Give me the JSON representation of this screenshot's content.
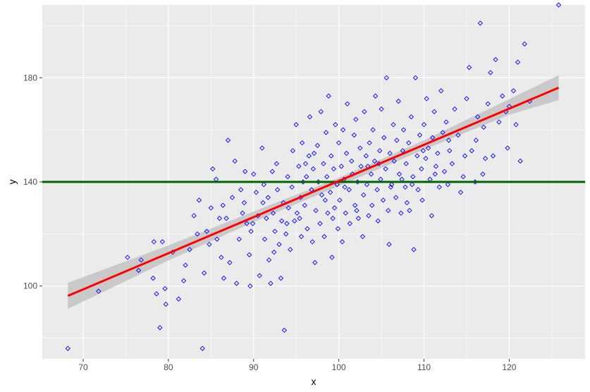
{
  "chart_data": {
    "type": "scatter",
    "xlabel": "x",
    "ylabel": "y",
    "xlim": [
      65.2,
      128.9
    ],
    "ylim": [
      72.0,
      208.0
    ],
    "x_ticks": [
      70,
      80,
      90,
      100,
      110,
      120
    ],
    "y_ticks": [
      100,
      140,
      180
    ],
    "x_tick_labels": [
      "70",
      "80",
      "90",
      "100",
      "110",
      "120"
    ],
    "y_tick_labels": [
      "100",
      "140",
      "180"
    ],
    "grid": true,
    "legend": "none",
    "colors": {
      "panel": "#ebebeb",
      "grid": "#ffffff",
      "points": "#0000ff",
      "fit_line": "#ff0000",
      "confidence_band": "#bebebe",
      "hline": "#006400"
    },
    "hline": {
      "y": 140
    },
    "regression": {
      "x": [
        68.2,
        125.8
      ],
      "y": [
        96.2,
        176.2
      ],
      "band_x": [
        68.2,
        80,
        90,
        100,
        110,
        120,
        125.8
      ],
      "band_low": [
        91.2,
        109.8,
        124.6,
        138.4,
        152.4,
        165.8,
        171.4
      ],
      "band_high": [
        101.2,
        115.6,
        128.6,
        141.6,
        156.0,
        171.8,
        181.0
      ]
    },
    "series": [
      {
        "points": [
          [
            68.2,
            76
          ],
          [
            71.8,
            98
          ],
          [
            75.2,
            111
          ],
          [
            76.5,
            106
          ],
          [
            78.3,
            117
          ],
          [
            78.2,
            103
          ],
          [
            78.6,
            97
          ],
          [
            79.0,
            84
          ],
          [
            79.3,
            117
          ],
          [
            79.6,
            99
          ],
          [
            79.7,
            93
          ],
          [
            80.5,
            113
          ],
          [
            81.2,
            95
          ],
          [
            81.8,
            102
          ],
          [
            82.5,
            114
          ],
          [
            83.0,
            127
          ],
          [
            83.4,
            120
          ],
          [
            84.0,
            76
          ],
          [
            84.2,
            105
          ],
          [
            84.5,
            121
          ],
          [
            85.0,
            130
          ],
          [
            85.2,
            145
          ],
          [
            85.6,
            141
          ],
          [
            85.7,
            118
          ],
          [
            86.0,
            126
          ],
          [
            86.2,
            111
          ],
          [
            86.5,
            103
          ],
          [
            86.8,
            126
          ],
          [
            87.0,
            156
          ],
          [
            87.2,
            109
          ],
          [
            87.5,
            134
          ],
          [
            87.8,
            148
          ],
          [
            88.0,
            101
          ],
          [
            88.3,
            118
          ],
          [
            88.5,
            137
          ],
          [
            88.7,
            128
          ],
          [
            89.0,
            144
          ],
          [
            89.2,
            124
          ],
          [
            89.5,
            112
          ],
          [
            89.6,
            100
          ],
          [
            89.7,
            121
          ],
          [
            90.0,
            143
          ],
          [
            90.3,
            136
          ],
          [
            90.5,
            127
          ],
          [
            90.7,
            104
          ],
          [
            91.0,
            153
          ],
          [
            91.2,
            139
          ],
          [
            91.3,
            118
          ],
          [
            91.5,
            126
          ],
          [
            91.7,
            134
          ],
          [
            91.8,
            110
          ],
          [
            92.0,
            101
          ],
          [
            92.2,
            144
          ],
          [
            92.3,
            128
          ],
          [
            92.5,
            121
          ],
          [
            92.7,
            147
          ],
          [
            92.8,
            137
          ],
          [
            93.0,
            116
          ],
          [
            93.2,
            103
          ],
          [
            93.3,
            125
          ],
          [
            93.5,
            132
          ],
          [
            93.6,
            83
          ],
          [
            93.8,
            120
          ],
          [
            94.0,
            142
          ],
          [
            94.1,
            130
          ],
          [
            94.3,
            114
          ],
          [
            94.5,
            138
          ],
          [
            94.6,
            152
          ],
          [
            94.8,
            125
          ],
          [
            95.0,
            162
          ],
          [
            95.1,
            128
          ],
          [
            95.3,
            146
          ],
          [
            95.5,
            134
          ],
          [
            95.6,
            119
          ],
          [
            95.7,
            155
          ],
          [
            95.8,
            140
          ],
          [
            96.0,
            131
          ],
          [
            96.2,
            142
          ],
          [
            96.3,
            122
          ],
          [
            96.5,
            150
          ],
          [
            96.6,
            165
          ],
          [
            96.8,
            137
          ],
          [
            96.9,
            117
          ],
          [
            97.0,
            145
          ],
          [
            97.2,
            109
          ],
          [
            97.3,
            129
          ],
          [
            97.5,
            154
          ],
          [
            97.6,
            140
          ],
          [
            97.8,
            124
          ],
          [
            97.9,
            167
          ],
          [
            98.0,
            135
          ],
          [
            98.2,
            147
          ],
          [
            98.3,
            119
          ],
          [
            98.5,
            159
          ],
          [
            98.6,
            142
          ],
          [
            98.7,
            128
          ],
          [
            98.8,
            173
          ],
          [
            99.0,
            136
          ],
          [
            99.1,
            150
          ],
          [
            99.2,
            111
          ],
          [
            99.4,
            145
          ],
          [
            99.5,
            130
          ],
          [
            99.6,
            162
          ],
          [
            99.8,
            139
          ],
          [
            99.9,
            122
          ],
          [
            100.0,
            155
          ],
          [
            100.1,
            133
          ],
          [
            100.3,
            146
          ],
          [
            100.4,
            117
          ],
          [
            100.5,
            160
          ],
          [
            100.6,
            141
          ],
          [
            100.8,
            128
          ],
          [
            100.9,
            151
          ],
          [
            101.0,
            170
          ],
          [
            101.2,
            137
          ],
          [
            101.3,
            124
          ],
          [
            101.5,
            148
          ],
          [
            101.6,
            143
          ],
          [
            101.8,
            158
          ],
          [
            101.9,
            131
          ],
          [
            102.0,
            164
          ],
          [
            102.2,
            140
          ],
          [
            102.3,
            126
          ],
          [
            102.5,
            153
          ],
          [
            102.6,
            146
          ],
          [
            102.8,
            119
          ],
          [
            102.9,
            135
          ],
          [
            103.0,
            167
          ],
          [
            103.2,
            150
          ],
          [
            103.3,
            139
          ],
          [
            103.5,
            127
          ],
          [
            103.6,
            155
          ],
          [
            103.8,
            143
          ],
          [
            103.9,
            131
          ],
          [
            104.0,
            160
          ],
          [
            104.2,
            148
          ],
          [
            104.3,
            173
          ],
          [
            104.5,
            137
          ],
          [
            104.6,
            125
          ],
          [
            104.8,
            152
          ],
          [
            104.9,
            141
          ],
          [
            105.0,
            168
          ],
          [
            105.2,
            133
          ],
          [
            105.3,
            157
          ],
          [
            105.5,
            145
          ],
          [
            105.6,
            180
          ],
          [
            105.8,
            129
          ],
          [
            105.9,
            116
          ],
          [
            106.0,
            151
          ],
          [
            106.2,
            139
          ],
          [
            106.4,
            162
          ],
          [
            106.5,
            148
          ],
          [
            106.7,
            134
          ],
          [
            106.8,
            156
          ],
          [
            107.0,
            171
          ],
          [
            107.1,
            143
          ],
          [
            107.3,
            128
          ],
          [
            107.5,
            152
          ],
          [
            107.6,
            160
          ],
          [
            107.8,
            138
          ],
          [
            107.9,
            147
          ],
          [
            108.0,
            132
          ],
          [
            108.2,
            155
          ],
          [
            108.3,
            129
          ],
          [
            108.5,
            165
          ],
          [
            108.7,
            142
          ],
          [
            108.8,
            114
          ],
          [
            109.0,
            180
          ],
          [
            109.2,
            150
          ],
          [
            109.3,
            137
          ],
          [
            109.5,
            158
          ],
          [
            109.7,
            145
          ],
          [
            109.8,
            133
          ],
          [
            110.0,
            162
          ],
          [
            110.2,
            149
          ],
          [
            110.3,
            172
          ],
          [
            110.5,
            153
          ],
          [
            110.7,
            141
          ],
          [
            110.9,
            127
          ],
          [
            111.0,
            157
          ],
          [
            111.2,
            167
          ],
          [
            111.4,
            146
          ],
          [
            111.6,
            151
          ],
          [
            111.8,
            138
          ],
          [
            112.0,
            175
          ],
          [
            112.2,
            159
          ],
          [
            112.4,
            144
          ],
          [
            112.6,
            163
          ],
          [
            112.8,
            139
          ],
          [
            113.0,
            152
          ],
          [
            113.3,
            147
          ],
          [
            113.6,
            168
          ],
          [
            114.0,
            158
          ],
          [
            114.3,
            136
          ],
          [
            114.6,
            142
          ],
          [
            115.0,
            172
          ],
          [
            115.3,
            184
          ],
          [
            115.6,
            152
          ],
          [
            116.0,
            140
          ],
          [
            116.3,
            165
          ],
          [
            116.6,
            201
          ],
          [
            116.9,
            143
          ],
          [
            117.2,
            149
          ],
          [
            117.5,
            170
          ],
          [
            117.8,
            182
          ],
          [
            118.1,
            150
          ],
          [
            118.4,
            187
          ],
          [
            118.8,
            163
          ],
          [
            119.2,
            173
          ],
          [
            119.6,
            167
          ],
          [
            120.0,
            169
          ],
          [
            120.5,
            175
          ],
          [
            121.0,
            186
          ],
          [
            121.3,
            148
          ],
          [
            121.8,
            193
          ],
          [
            122.4,
            171
          ],
          [
            125.8,
            208
          ],
          [
            76.8,
            110
          ],
          [
            82.0,
            108
          ],
          [
            83.6,
            133
          ],
          [
            84.8,
            116
          ],
          [
            86.4,
            131
          ],
          [
            88.9,
            132
          ],
          [
            89.9,
            124
          ],
          [
            91.1,
            132
          ],
          [
            92.4,
            113
          ],
          [
            93.9,
            124
          ],
          [
            95.4,
            126
          ],
          [
            96.1,
            147
          ],
          [
            97.1,
            151
          ],
          [
            98.4,
            133
          ],
          [
            99.3,
            126
          ],
          [
            100.7,
            138
          ],
          [
            102.1,
            129
          ],
          [
            103.4,
            146
          ],
          [
            104.7,
            147
          ],
          [
            106.1,
            138
          ],
          [
            107.4,
            141
          ],
          [
            108.6,
            139
          ],
          [
            109.9,
            152
          ],
          [
            111.3,
            143
          ],
          [
            112.9,
            156
          ],
          [
            114.8,
            150
          ],
          [
            116.1,
            156
          ],
          [
            117.0,
            161
          ],
          [
            119.8,
            153
          ],
          [
            120.8,
            162
          ]
        ]
      }
    ]
  }
}
